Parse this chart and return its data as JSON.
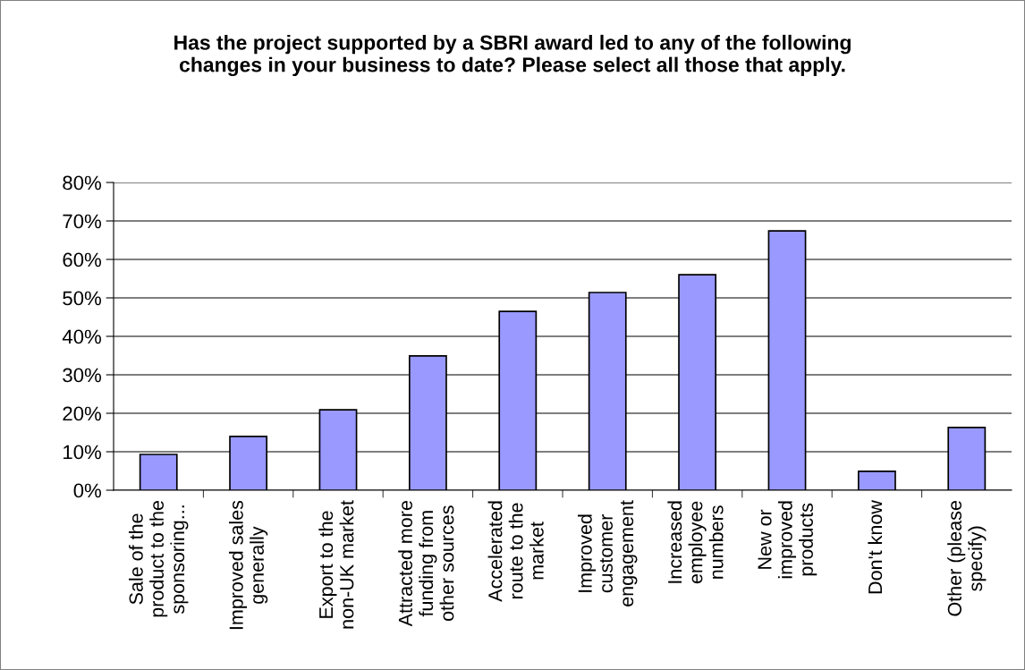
{
  "chart_data": {
    "type": "bar",
    "title": "Has the project supported by a SBRI award led to any of the following\nchanges in your business to date? Please select all those that apply.",
    "categories": [
      "Sale of the\nproduct to the\nsponsoring...",
      "Improved sales\ngenerally",
      "Export to the\nnon-UK market",
      "Attracted more\nfunding from\nother sources",
      "Accelerated\nroute to the\nmarket",
      "Improved\ncustomer\nengagement",
      "Increased\nemployee\nnumbers",
      "New or\nimproved\nproducts",
      "Don't know",
      "Other (please\nspecify)"
    ],
    "values": [
      9.3,
      14.0,
      20.9,
      34.9,
      46.5,
      51.4,
      56.0,
      67.4,
      4.9,
      16.3
    ],
    "color": "#9999ff",
    "ylim": [
      0,
      80
    ],
    "yticks": [
      {
        "value": 0,
        "label": "0%"
      },
      {
        "value": 10,
        "label": "10%"
      },
      {
        "value": 20,
        "label": "20%"
      },
      {
        "value": 30,
        "label": "30%"
      },
      {
        "value": 40,
        "label": "40%"
      },
      {
        "value": 50,
        "label": "50%"
      },
      {
        "value": 60,
        "label": "60%"
      },
      {
        "value": 70,
        "label": "70%"
      },
      {
        "value": 80,
        "label": "80%"
      }
    ],
    "grid": "y",
    "legend": false
  }
}
